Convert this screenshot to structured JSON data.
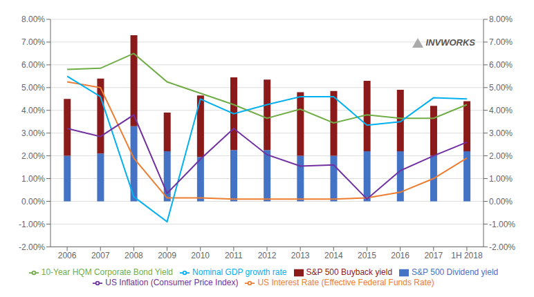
{
  "chart_data": {
    "type": "bar",
    "stacked": true,
    "grid": true,
    "legend": "bottom",
    "categories": [
      "2006",
      "2007",
      "2008",
      "2009",
      "2010",
      "2011",
      "2012",
      "2013",
      "2014",
      "2015",
      "2016",
      "2017",
      "1H 2018"
    ],
    "series": [
      {
        "name": "S&P 500 Dividend yield",
        "type": "bar",
        "color": "#4472C4",
        "values": [
          2.0,
          2.1,
          3.3,
          2.2,
          1.95,
          2.25,
          2.25,
          2.0,
          2.0,
          2.2,
          2.2,
          2.0,
          2.2
        ]
      },
      {
        "name": "S&P 500 Buyback yield",
        "type": "bar",
        "color": "#8B1A1A",
        "values": [
          2.5,
          3.3,
          4.0,
          1.7,
          2.7,
          3.2,
          3.1,
          2.8,
          2.85,
          3.1,
          2.7,
          2.2,
          2.2
        ]
      },
      {
        "name": "10-Year HQM Corporate Bond Yield",
        "type": "line",
        "color": "#70AD47",
        "values": [
          5.8,
          5.85,
          6.5,
          5.25,
          4.75,
          4.25,
          3.65,
          4.05,
          3.45,
          3.8,
          3.65,
          3.65,
          4.25
        ]
      },
      {
        "name": "US Interest Rate (Effective Federal Funds Rate)",
        "type": "line",
        "color": "#ED7D31",
        "values": [
          5.25,
          5.0,
          1.9,
          0.15,
          0.15,
          0.1,
          0.1,
          0.1,
          0.1,
          0.15,
          0.4,
          1.0,
          1.9
        ]
      },
      {
        "name": "Nominal GDP growth rate",
        "type": "line",
        "color": "#00B0F0",
        "values": [
          5.5,
          4.6,
          0.2,
          -0.9,
          4.5,
          3.85,
          4.25,
          4.6,
          4.6,
          3.35,
          3.5,
          4.55,
          4.5
        ]
      },
      {
        "name": "US Inflation (Consumer Price Index)",
        "type": "line",
        "color": "#7030A0",
        "values": [
          3.2,
          2.85,
          3.8,
          0.35,
          1.85,
          3.2,
          2.05,
          1.55,
          1.6,
          0.1,
          1.35,
          2.0,
          2.6
        ]
      }
    ],
    "ylim": [
      -2.0,
      8.0
    ],
    "yticks": [
      {
        "value": -2.0,
        "label": "-2.00%"
      },
      {
        "value": -1.0,
        "label": "-1.00%"
      },
      {
        "value": 0.0,
        "label": "0.00%"
      },
      {
        "value": 1.0,
        "label": "1.00%"
      },
      {
        "value": 2.0,
        "label": "2.00%"
      },
      {
        "value": 3.0,
        "label": "3.00%"
      },
      {
        "value": 4.0,
        "label": "4.00%"
      },
      {
        "value": 5.0,
        "label": "5.00%"
      },
      {
        "value": 6.0,
        "label": "6.00%"
      },
      {
        "value": 7.0,
        "label": "7.00%"
      },
      {
        "value": 8.0,
        "label": "8.00%"
      }
    ],
    "y2lim": [
      -2.0,
      8.0
    ],
    "y2ticks": [
      {
        "value": -2.0,
        "label": "-2.00%"
      },
      {
        "value": -1.0,
        "label": "-1.00%"
      },
      {
        "value": 0.0,
        "label": "0.00%"
      },
      {
        "value": 1.0,
        "label": "1.00%"
      },
      {
        "value": 2.0,
        "label": "2.00%"
      },
      {
        "value": 3.0,
        "label": "3.00%"
      },
      {
        "value": 4.0,
        "label": "4.00%"
      },
      {
        "value": 5.0,
        "label": "5.00%"
      },
      {
        "value": 6.0,
        "label": "6.00%"
      },
      {
        "value": 7.0,
        "label": "7.00%"
      },
      {
        "value": 8.0,
        "label": "8.00%"
      }
    ],
    "annotations": [
      "INVWORKS"
    ]
  }
}
